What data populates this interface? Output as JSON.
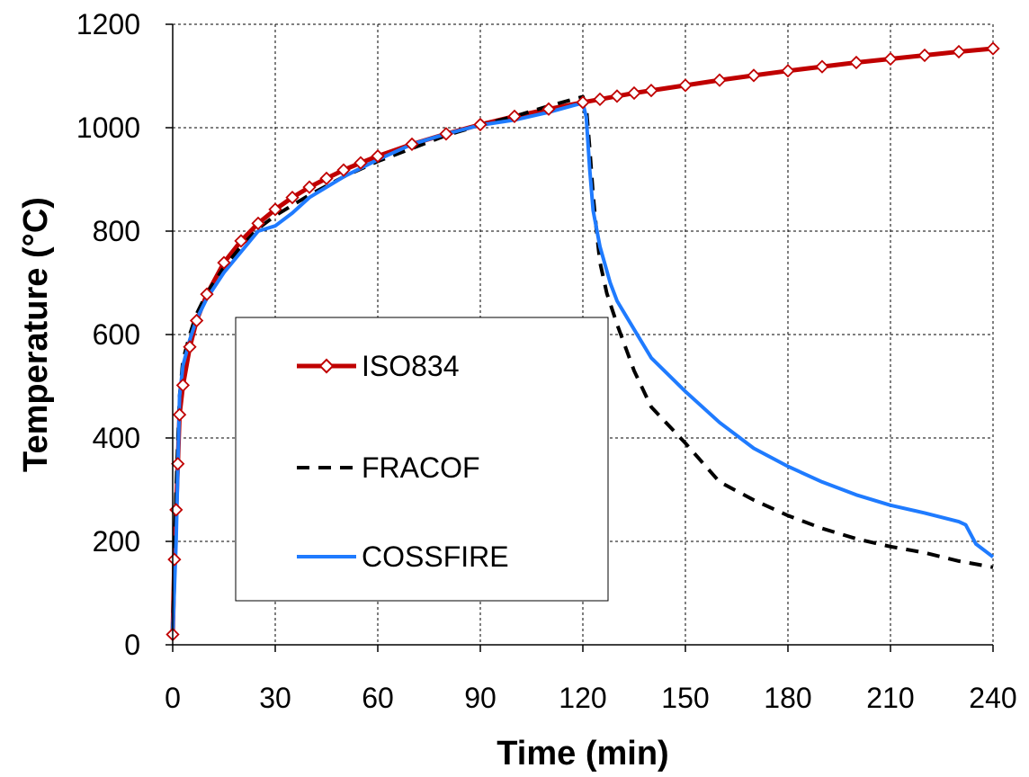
{
  "chart_data": {
    "type": "line",
    "title": "",
    "xlabel": "Time (min)",
    "ylabel": "Temperature (°C)",
    "xlim": [
      0,
      240
    ],
    "ylim": [
      0,
      1200
    ],
    "xticks": [
      0,
      30,
      60,
      90,
      120,
      150,
      180,
      210,
      240
    ],
    "yticks": [
      0,
      200,
      400,
      600,
      800,
      1000,
      1200
    ],
    "grid": true,
    "legend_position": "center-left",
    "series": [
      {
        "name": "ISO834",
        "color": "#C00000",
        "style": "solid-with-diamond-markers",
        "x": [
          0,
          0.5,
          1,
          1.5,
          2,
          3,
          5,
          7,
          10,
          15,
          20,
          25,
          30,
          35,
          40,
          45,
          50,
          55,
          60,
          70,
          80,
          90,
          100,
          110,
          120,
          125,
          130,
          135,
          140,
          150,
          160,
          170,
          180,
          190,
          200,
          210,
          220,
          230,
          240
        ],
        "y": [
          20,
          165,
          261,
          350,
          445,
          502,
          576,
          627,
          678,
          739,
          781,
          815,
          842,
          865,
          885,
          902,
          918,
          932,
          945,
          968,
          988,
          1006,
          1022,
          1036,
          1049,
          1055,
          1061,
          1067,
          1072,
          1082,
          1092,
          1101,
          1110,
          1118,
          1126,
          1133,
          1140,
          1147,
          1153
        ]
      },
      {
        "name": "FRACOF",
        "color": "#000000",
        "style": "dashed",
        "x": [
          0,
          1,
          2,
          3,
          5,
          7,
          10,
          15,
          20,
          25,
          30,
          40,
          50,
          60,
          70,
          80,
          90,
          100,
          110,
          120,
          121,
          122,
          123,
          124,
          125,
          127,
          130,
          135,
          140,
          150,
          160,
          170,
          180,
          190,
          200,
          210,
          220,
          230,
          240
        ],
        "y": [
          20,
          300,
          480,
          550,
          600,
          640,
          680,
          730,
          770,
          805,
          830,
          870,
          905,
          935,
          960,
          985,
          1005,
          1022,
          1042,
          1060,
          1040,
          960,
          870,
          800,
          740,
          680,
          620,
          530,
          460,
          390,
          315,
          280,
          250,
          225,
          205,
          190,
          178,
          162,
          150
        ]
      },
      {
        "name": "COSSFIRE",
        "color": "#1F7BFF",
        "style": "solid",
        "x": [
          0,
          1,
          2,
          3,
          5,
          7,
          10,
          15,
          20,
          25,
          30,
          35,
          40,
          50,
          60,
          70,
          80,
          90,
          100,
          110,
          120,
          121,
          122,
          123,
          125,
          128,
          130,
          135,
          140,
          150,
          160,
          170,
          180,
          190,
          200,
          210,
          220,
          230,
          232,
          235,
          240
        ],
        "y": [
          20,
          200,
          480,
          540,
          590,
          630,
          670,
          720,
          760,
          800,
          810,
          835,
          865,
          905,
          938,
          968,
          988,
          1005,
          1015,
          1030,
          1048,
          1020,
          920,
          840,
          770,
          700,
          665,
          610,
          555,
          490,
          430,
          380,
          345,
          315,
          290,
          270,
          255,
          238,
          232,
          195,
          170
        ]
      }
    ]
  }
}
